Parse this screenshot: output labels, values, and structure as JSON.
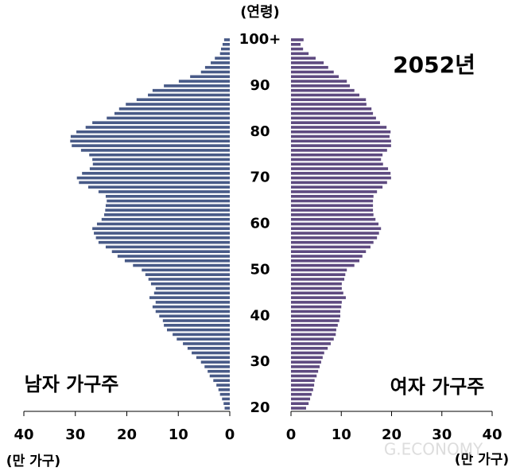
{
  "chart_data": {
    "type": "bar",
    "orientation": "horizontal",
    "title": "2052년",
    "ylabel": "(연령)",
    "watermark": "G.ECONOMY",
    "categories": [
      "20",
      null,
      null,
      null,
      null,
      null,
      null,
      null,
      null,
      null,
      "30",
      null,
      null,
      null,
      null,
      null,
      null,
      null,
      null,
      null,
      "40",
      null,
      null,
      null,
      null,
      null,
      null,
      null,
      null,
      null,
      "50",
      null,
      null,
      null,
      null,
      null,
      null,
      null,
      null,
      null,
      "60",
      null,
      null,
      null,
      null,
      null,
      null,
      null,
      null,
      null,
      "70",
      null,
      null,
      null,
      null,
      null,
      null,
      null,
      null,
      null,
      "80",
      null,
      null,
      null,
      null,
      null,
      null,
      null,
      null,
      null,
      "90",
      null,
      null,
      null,
      null,
      null,
      null,
      null,
      null,
      null,
      "100+"
    ],
    "series": [
      {
        "name": "남자 가구주",
        "color": "#485a87",
        "xlabel": "(만 가구)",
        "xlim": [
          40,
          0
        ],
        "xticks": [
          40,
          30,
          20,
          10,
          0
        ],
        "values": [
          1,
          1.2,
          1.5,
          1.9,
          2.2,
          2.6,
          3.2,
          3.9,
          4.3,
          4.9,
          5.6,
          6.5,
          7.4,
          8.2,
          9.1,
          10.3,
          11.1,
          12.2,
          12.8,
          13,
          13.7,
          14.4,
          15,
          14.4,
          15.6,
          14.7,
          14.4,
          15.3,
          15.8,
          16.4,
          17.1,
          18.8,
          20.4,
          21.8,
          22.9,
          24.1,
          25.5,
          26,
          26.4,
          26.7,
          25.8,
          24.9,
          24.4,
          24.2,
          24.1,
          23.9,
          24.1,
          25.5,
          27.5,
          29.3,
          29.7,
          28.7,
          27.2,
          26.6,
          26.7,
          27.3,
          28.9,
          30.7,
          31,
          30.9,
          29.8,
          28,
          26.7,
          23.9,
          22.4,
          21.5,
          20.2,
          18.1,
          15.9,
          15,
          12.8,
          9.9,
          7.7,
          5.6,
          4.8,
          3.7,
          2.9,
          1.9,
          1.7,
          1.4,
          1.1
        ]
      },
      {
        "name": "여자 가구주",
        "color": "#5e4a80",
        "xlabel": "(만 가구)",
        "xlim": [
          0,
          40
        ],
        "xticks": [
          0,
          10,
          20,
          30,
          40
        ],
        "values": [
          3,
          3.5,
          3.8,
          4.1,
          4.4,
          4.6,
          4.7,
          5.1,
          5.4,
          5.7,
          6,
          6.3,
          6.6,
          7.3,
          7.9,
          8.5,
          8.9,
          9,
          9.3,
          9.6,
          9.8,
          9.8,
          10,
          10.1,
          10.9,
          10.4,
          10.1,
          10.1,
          10.6,
          10.8,
          11.1,
          12.6,
          13.6,
          14.2,
          14.9,
          15.8,
          16.4,
          17.1,
          17.5,
          17.9,
          17.4,
          16.8,
          16.4,
          16.3,
          16.3,
          16.3,
          16.4,
          17.1,
          18.2,
          19.1,
          19.9,
          19.8,
          19.3,
          18.3,
          17.9,
          18.2,
          19.1,
          19.9,
          19.9,
          19.6,
          19.8,
          19,
          17.7,
          16.9,
          16.3,
          16,
          15,
          14.9,
          13.6,
          12.6,
          11.7,
          11.1,
          9.5,
          8.5,
          7.4,
          6.5,
          4.9,
          3.5,
          2.4,
          1.9,
          2.5
        ]
      }
    ]
  }
}
